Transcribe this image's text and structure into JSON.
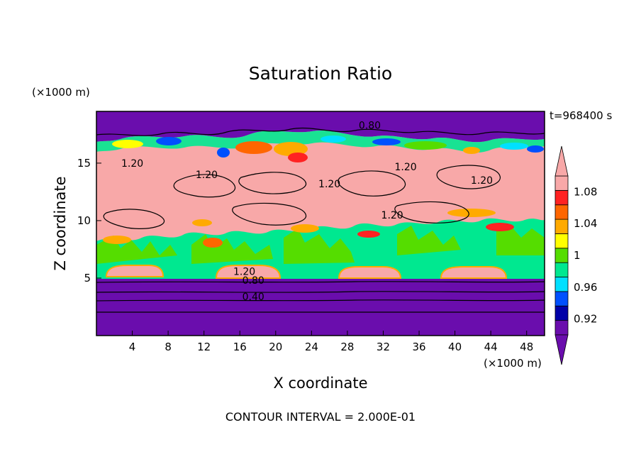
{
  "chart_data": {
    "type": "heatmap",
    "title": "Saturation Ratio",
    "xlabel": "X coordinate",
    "ylabel": "Z coordinate",
    "x_unit": "(×1000 m)",
    "y_unit": "(×1000 m)",
    "time_label": "t=968400 s",
    "footer": "CONTOUR INTERVAL = 2.000E-01",
    "xlim": [
      0,
      50
    ],
    "ylim": [
      0,
      19.5
    ],
    "x_ticks": [
      4,
      8,
      12,
      16,
      20,
      24,
      28,
      32,
      36,
      40,
      44,
      48
    ],
    "y_ticks": [
      5,
      10,
      15
    ],
    "colorbar": {
      "range": [
        0.9,
        1.1
      ],
      "labels": [
        "0.92",
        "0.96",
        "1",
        "1.04",
        "1.08"
      ],
      "label_values": [
        0.92,
        0.96,
        1.0,
        1.04,
        1.08
      ],
      "colors": [
        "#6a0dad",
        "#0000a8",
        "#0050ff",
        "#00e0ff",
        "#00e890",
        "#55dd00",
        "#ffff00",
        "#ffaa00",
        "#ff6600",
        "#ff2222",
        "#f8a8a8"
      ]
    },
    "contour_labels": [
      {
        "text": "0.80",
        "x": 30.5,
        "z": 18.3
      },
      {
        "text": "1.20",
        "x": 4.0,
        "z": 15.0
      },
      {
        "text": "1.20",
        "x": 12.3,
        "z": 14.0
      },
      {
        "text": "1.20",
        "x": 26.0,
        "z": 13.2
      },
      {
        "text": "1.20",
        "x": 34.5,
        "z": 14.7
      },
      {
        "text": "1.20",
        "x": 43.0,
        "z": 13.5
      },
      {
        "text": "1.20",
        "x": 33.0,
        "z": 10.5
      },
      {
        "text": "1.20",
        "x": 16.5,
        "z": 5.6
      },
      {
        "text": "0.80",
        "x": 17.5,
        "z": 4.8
      },
      {
        "text": "0.40",
        "x": 17.5,
        "z": 3.4
      }
    ]
  }
}
